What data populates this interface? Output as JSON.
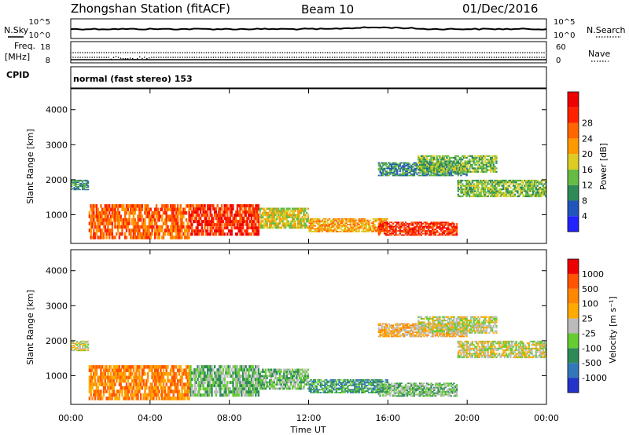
{
  "header": {
    "station": "Zhongshan Station (fitACF)",
    "beam": "Beam 10",
    "date": "01/Dec/2016"
  },
  "panels": {
    "nsky_label": "N.Sky",
    "nsearch_label": "N.Search",
    "nsky_ticks": [
      "10^5",
      "10^0"
    ],
    "nsearch_ticks": [
      "10^5",
      "10^0"
    ],
    "freq_label_1": "Freq.",
    "freq_label_2": "[MHz]",
    "freq_ticks": [
      "18",
      "8"
    ],
    "nave_label": "Nave",
    "nave_ticks": [
      "60",
      "0"
    ],
    "cpid_label": "CPID",
    "cpid_text": "normal (fast stereo) 153"
  },
  "chart_data": [
    {
      "type": "line",
      "panel": "noise",
      "series": [
        {
          "name": "N.Sky",
          "scale": "log",
          "ylim": [
            1,
            100000
          ],
          "note_level": "approx 10^3.5 throughout, rising slightly near 16:00"
        },
        {
          "name": "N.Search",
          "scale": "log",
          "ylim": [
            1,
            100000
          ]
        }
      ],
      "xlim": [
        "00:00",
        "24:00"
      ]
    },
    {
      "type": "scatter",
      "panel": "frequency",
      "series": [
        {
          "name": "Freq.",
          "unit": "MHz",
          "ylim": [
            8,
            18
          ],
          "values": [
            {
              "x": "00:00",
              "y": 12
            },
            {
              "x": "24:00",
              "y": 12
            }
          ]
        },
        {
          "name": "Nave",
          "ylim": [
            0,
            60
          ]
        }
      ]
    },
    {
      "type": "heatmap",
      "panel": "power",
      "xlabel": "Time UT",
      "ylabel": "Slant Range [km]",
      "yticks": [
        "1000",
        "2000",
        "3000",
        "4000"
      ],
      "ylim": [
        180,
        4600
      ],
      "xticks": [
        "00:00",
        "04:00",
        "08:00",
        "12:00",
        "16:00",
        "20:00",
        "00:00"
      ],
      "colorbar_label": "Power [dB]",
      "colorbar_ticks": [
        "4",
        "8",
        "12",
        "16",
        "20",
        "24",
        "28"
      ],
      "colorbar_colors": [
        "#2222ff",
        "#2255bb",
        "#2e8b57",
        "#66bb44",
        "#ddcc22",
        "#ff9900",
        "#ff6600",
        "#ff2200",
        "#ee0000"
      ],
      "echo_regions": [
        {
          "t0": 0.0,
          "t1": 0.9,
          "r0": 1700,
          "r1": 2000,
          "level": 2
        },
        {
          "t0": 0.9,
          "t1": 6.0,
          "r0": 300,
          "r1": 1300,
          "level": 6
        },
        {
          "t0": 6.0,
          "t1": 9.5,
          "r0": 400,
          "r1": 1300,
          "level": 7
        },
        {
          "t0": 9.5,
          "t1": 12.0,
          "r0": 600,
          "r1": 1200,
          "level": 4
        },
        {
          "t0": 12.0,
          "t1": 16.0,
          "r0": 500,
          "r1": 900,
          "level": 5
        },
        {
          "t0": 15.5,
          "t1": 19.5,
          "r0": 400,
          "r1": 800,
          "level": 7
        },
        {
          "t0": 15.5,
          "t1": 20.0,
          "r0": 2100,
          "r1": 2500,
          "level": 2
        },
        {
          "t0": 17.5,
          "t1": 21.5,
          "r0": 2200,
          "r1": 2700,
          "level": 3
        },
        {
          "t0": 19.5,
          "t1": 24.0,
          "r0": 1500,
          "r1": 2000,
          "level": 3
        }
      ]
    },
    {
      "type": "heatmap",
      "panel": "velocity",
      "xlabel": "Time UT",
      "ylabel": "Slant Range [km]",
      "yticks": [
        "1000",
        "2000",
        "3000",
        "4000"
      ],
      "ylim": [
        180,
        4600
      ],
      "xticks": [
        "00:00",
        "04:00",
        "08:00",
        "12:00",
        "16:00",
        "20:00",
        "00:00"
      ],
      "colorbar_label": "Velocity [m s⁻¹]",
      "colorbar_ticks": [
        "1000",
        "500",
        "100",
        "25",
        "-25",
        "-100",
        "-500",
        "-1000"
      ],
      "colorbar_colors": [
        "#2233cc",
        "#3377bb",
        "#2e8b57",
        "#66cc33",
        "#bbbbbb",
        "#ffaa00",
        "#ff8800",
        "#ff5500",
        "#ee0000"
      ],
      "echo_regions": [
        {
          "t0": 0.0,
          "t1": 0.9,
          "r0": 1700,
          "r1": 2000,
          "cat": 4
        },
        {
          "t0": 0.9,
          "t1": 6.0,
          "r0": 300,
          "r1": 1300,
          "cat": 6
        },
        {
          "t0": 6.0,
          "t1": 9.5,
          "r0": 400,
          "r1": 1300,
          "cat": 3
        },
        {
          "t0": 9.5,
          "t1": 12.0,
          "r0": 600,
          "r1": 1200,
          "cat": 3
        },
        {
          "t0": 12.0,
          "t1": 16.0,
          "r0": 500,
          "r1": 900,
          "cat": 2
        },
        {
          "t0": 15.5,
          "t1": 19.5,
          "r0": 400,
          "r1": 800,
          "cat": 3
        },
        {
          "t0": 15.5,
          "t1": 20.0,
          "r0": 2100,
          "r1": 2500,
          "cat": 5
        },
        {
          "t0": 17.5,
          "t1": 21.5,
          "r0": 2200,
          "r1": 2700,
          "cat": 4
        },
        {
          "t0": 19.5,
          "t1": 24.0,
          "r0": 1500,
          "r1": 2000,
          "cat": 4
        }
      ]
    }
  ]
}
